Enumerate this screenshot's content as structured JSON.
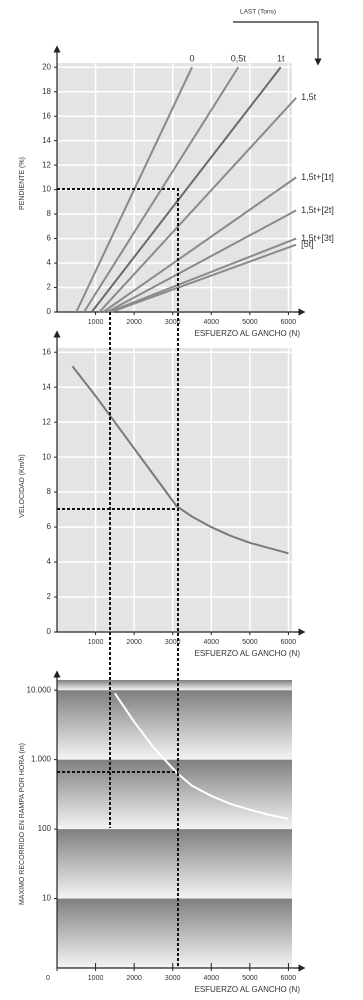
{
  "chart_data": [
    {
      "type": "line",
      "header": "LAST (Tons)",
      "y_label": "PENDIENTE (%)",
      "x_label": "ESFUERZO AL GANCHO (N)",
      "xlim": [
        0,
        6300
      ],
      "ylim": [
        0,
        21
      ],
      "xticks": [
        1000,
        2000,
        3000,
        4000,
        5000,
        6000
      ],
      "yticks": [
        0,
        2,
        4,
        6,
        8,
        10,
        12,
        14,
        16,
        18,
        20
      ],
      "grid": true,
      "series": [
        {
          "name": "0",
          "color": "#8a8a8a",
          "x": [
            500,
            3500
          ],
          "values": [
            0,
            20
          ]
        },
        {
          "name": "0,5t",
          "color": "#8a8a8a",
          "x": [
            700,
            4700
          ],
          "values": [
            0,
            20
          ]
        },
        {
          "name": "1t",
          "color": "#6a6a6a",
          "x": [
            900,
            5800
          ],
          "values": [
            0,
            20
          ]
        },
        {
          "name": "1,5t",
          "color": "#8a8a8a",
          "x": [
            1100,
            6200
          ],
          "values": [
            0,
            17.5
          ]
        },
        {
          "name": "1,5t+[1t]",
          "color": "#8a8a8a",
          "x": [
            1200,
            6200
          ],
          "values": [
            0,
            11
          ]
        },
        {
          "name": "1,5t+[2t]",
          "color": "#8a8a8a",
          "x": [
            1300,
            6200
          ],
          "values": [
            0,
            8.3
          ]
        },
        {
          "name": "1,5t+[3t]",
          "color": "#8a8a8a",
          "x": [
            1350,
            6200
          ],
          "values": [
            0,
            6
          ]
        },
        {
          "name": "[5t]",
          "color": "#8a8a8a",
          "x": [
            1400,
            6200
          ],
          "values": [
            0,
            5.5
          ]
        }
      ]
    },
    {
      "type": "line",
      "y_label": "VELOCIDAD (Km/h)",
      "x_label": "ESFUERZO AL GANCHO (N)",
      "xlim": [
        0,
        6300
      ],
      "ylim": [
        0,
        16.7
      ],
      "xticks": [
        1000,
        2000,
        3000,
        4000,
        5000,
        6000
      ],
      "yticks": [
        0,
        2,
        4,
        6,
        8,
        10,
        12,
        14,
        16
      ],
      "grid": true,
      "color": "#7a7a7a",
      "x": [
        400,
        1000,
        1500,
        2000,
        2500,
        3100,
        3500,
        4000,
        4500,
        5000,
        5500,
        6000
      ],
      "values": [
        15.2,
        13.5,
        12.0,
        10.5,
        9.0,
        7.2,
        6.6,
        6.0,
        5.5,
        5.1,
        4.8,
        4.5
      ]
    },
    {
      "type": "line",
      "y_label": "MAXIMO RECORRIDO EN RAMPA POR HORA (m)",
      "x_label": "ESFUERZO AL GANCHO (N)",
      "xlim": [
        0,
        6300
      ],
      "ylim": [
        1,
        14000
      ],
      "log_scale": true,
      "xticks": [
        0,
        1000,
        2000,
        3000,
        4000,
        5000,
        6000
      ],
      "yticks": [
        10,
        100,
        {
          "value": 1000,
          "label": "1.000"
        },
        {
          "value": 10000,
          "label": "10.000"
        }
      ],
      "grid": false,
      "color": "#ffffff",
      "x": [
        1500,
        2000,
        2500,
        3100,
        3500,
        4000,
        4500,
        5000,
        5500,
        6000
      ],
      "values": [
        9000,
        3500,
        1500,
        650,
        420,
        300,
        230,
        190,
        160,
        140
      ]
    }
  ]
}
